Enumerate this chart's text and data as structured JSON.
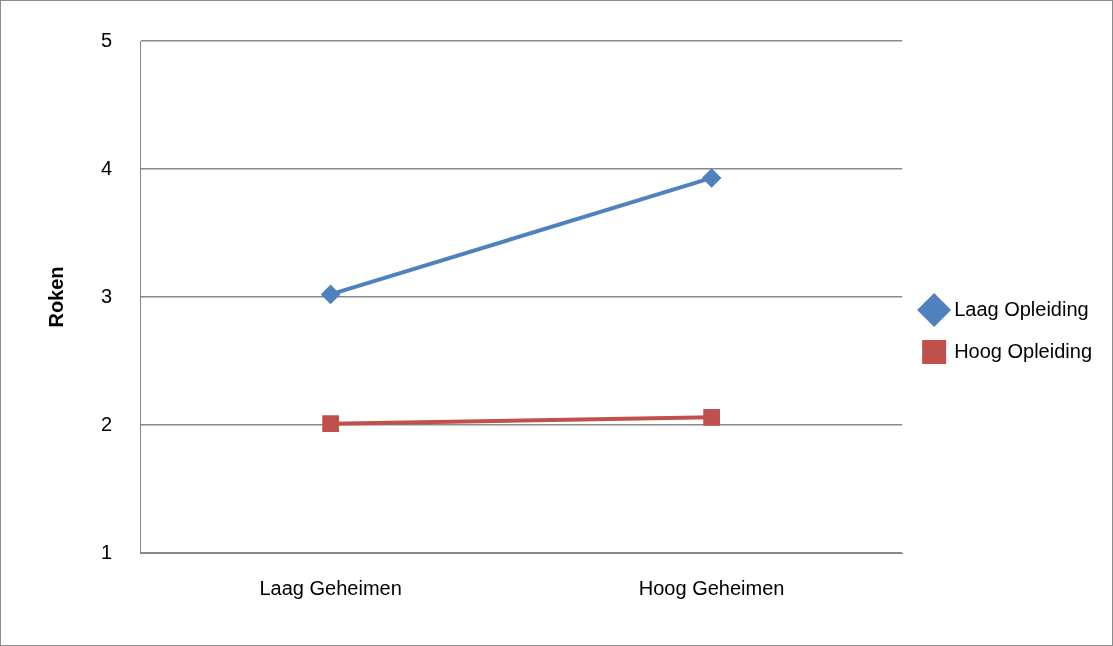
{
  "chart_data": {
    "type": "line",
    "ylabel": "Roken",
    "categories": [
      "Laag Geheimen",
      "Hoog Geheimen"
    ],
    "series": [
      {
        "name": "Laag Opleiding",
        "color": "#4f81bd",
        "values": [
          3.02,
          3.93
        ],
        "marker": "diamond"
      },
      {
        "name": "Hoog Opleiding",
        "color": "#c0504d",
        "values": [
          2.01,
          2.06
        ],
        "marker": "square"
      }
    ],
    "ylim": [
      1,
      5
    ],
    "yticks": [
      1,
      2,
      3,
      4,
      5
    ],
    "grid": "y",
    "legend": "right",
    "line_style": "solid"
  }
}
